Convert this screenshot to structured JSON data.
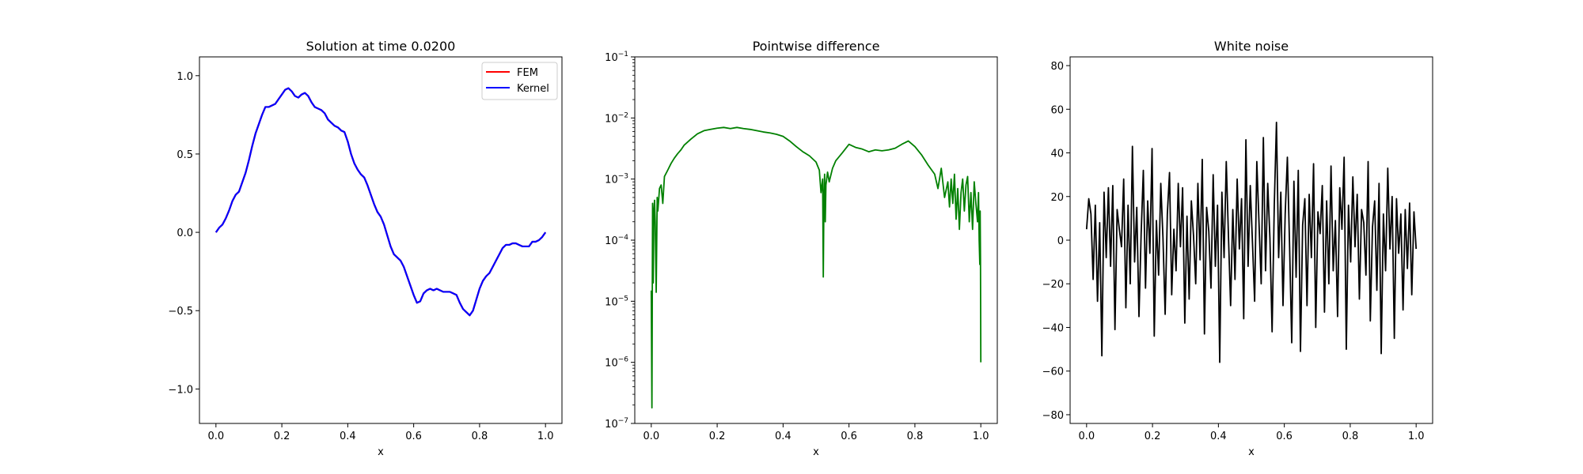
{
  "chart_data": [
    {
      "type": "line",
      "title": "Solution at time 0.0200",
      "xlabel": "x",
      "ylabel": "",
      "xlim": [
        -0.05,
        1.05
      ],
      "ylim": [
        -1.22,
        1.12
      ],
      "xticks": [
        0.0,
        0.2,
        0.4,
        0.6,
        0.8,
        1.0
      ],
      "xtick_labels": [
        "0.0",
        "0.2",
        "0.4",
        "0.6",
        "0.8",
        "1.0"
      ],
      "yticks": [
        -1.0,
        -0.5,
        0.0,
        0.5,
        1.0
      ],
      "ytick_labels": [
        "−1.0",
        "−0.5",
        "0.0",
        "0.5",
        "1.0"
      ],
      "legend": "top-right",
      "series": [
        {
          "name": "FEM",
          "color": "#ff0000",
          "x": [
            0,
            0.01,
            0.02,
            0.03,
            0.04,
            0.05,
            0.06,
            0.07,
            0.08,
            0.09,
            0.1,
            0.11,
            0.12,
            0.13,
            0.14,
            0.15,
            0.16,
            0.17,
            0.18,
            0.19,
            0.2,
            0.21,
            0.22,
            0.23,
            0.24,
            0.25,
            0.26,
            0.27,
            0.28,
            0.29,
            0.3,
            0.31,
            0.32,
            0.33,
            0.34,
            0.35,
            0.36,
            0.37,
            0.38,
            0.39,
            0.4,
            0.41,
            0.42,
            0.43,
            0.44,
            0.45,
            0.46,
            0.47,
            0.48,
            0.49,
            0.5,
            0.51,
            0.52,
            0.53,
            0.54,
            0.55,
            0.56,
            0.57,
            0.58,
            0.59,
            0.6,
            0.61,
            0.62,
            0.63,
            0.64,
            0.65,
            0.66,
            0.67,
            0.68,
            0.69,
            0.7,
            0.71,
            0.72,
            0.73,
            0.74,
            0.75,
            0.76,
            0.77,
            0.78,
            0.79,
            0.8,
            0.81,
            0.82,
            0.83,
            0.84,
            0.85,
            0.86,
            0.87,
            0.88,
            0.89,
            0.9,
            0.91,
            0.92,
            0.93,
            0.94,
            0.95,
            0.96,
            0.97,
            0.98,
            0.99,
            1.0
          ],
          "y": [
            0.0,
            0.03,
            0.05,
            0.09,
            0.14,
            0.2,
            0.24,
            0.26,
            0.32,
            0.38,
            0.46,
            0.55,
            0.63,
            0.69,
            0.75,
            0.8,
            0.8,
            0.81,
            0.82,
            0.85,
            0.88,
            0.91,
            0.92,
            0.9,
            0.87,
            0.86,
            0.88,
            0.89,
            0.87,
            0.83,
            0.8,
            0.79,
            0.78,
            0.76,
            0.72,
            0.7,
            0.68,
            0.67,
            0.65,
            0.64,
            0.58,
            0.5,
            0.44,
            0.4,
            0.37,
            0.35,
            0.3,
            0.24,
            0.18,
            0.13,
            0.1,
            0.05,
            -0.02,
            -0.09,
            -0.14,
            -0.16,
            -0.18,
            -0.22,
            -0.28,
            -0.34,
            -0.4,
            -0.45,
            -0.44,
            -0.39,
            -0.37,
            -0.36,
            -0.37,
            -0.36,
            -0.37,
            -0.38,
            -0.38,
            -0.38,
            -0.39,
            -0.4,
            -0.45,
            -0.49,
            -0.51,
            -0.53,
            -0.5,
            -0.43,
            -0.36,
            -0.31,
            -0.28,
            -0.26,
            -0.22,
            -0.18,
            -0.14,
            -0.1,
            -0.08,
            -0.08,
            -0.07,
            -0.07,
            -0.08,
            -0.09,
            -0.09,
            -0.09,
            -0.06,
            -0.06,
            -0.05,
            -0.03,
            0.0
          ]
        },
        {
          "name": "Kernel",
          "color": "#0000ff",
          "x": [
            0,
            0.01,
            0.02,
            0.03,
            0.04,
            0.05,
            0.06,
            0.07,
            0.08,
            0.09,
            0.1,
            0.11,
            0.12,
            0.13,
            0.14,
            0.15,
            0.16,
            0.17,
            0.18,
            0.19,
            0.2,
            0.21,
            0.22,
            0.23,
            0.24,
            0.25,
            0.26,
            0.27,
            0.28,
            0.29,
            0.3,
            0.31,
            0.32,
            0.33,
            0.34,
            0.35,
            0.36,
            0.37,
            0.38,
            0.39,
            0.4,
            0.41,
            0.42,
            0.43,
            0.44,
            0.45,
            0.46,
            0.47,
            0.48,
            0.49,
            0.5,
            0.51,
            0.52,
            0.53,
            0.54,
            0.55,
            0.56,
            0.57,
            0.58,
            0.59,
            0.6,
            0.61,
            0.62,
            0.63,
            0.64,
            0.65,
            0.66,
            0.67,
            0.68,
            0.69,
            0.7,
            0.71,
            0.72,
            0.73,
            0.74,
            0.75,
            0.76,
            0.77,
            0.78,
            0.79,
            0.8,
            0.81,
            0.82,
            0.83,
            0.84,
            0.85,
            0.86,
            0.87,
            0.88,
            0.89,
            0.9,
            0.91,
            0.92,
            0.93,
            0.94,
            0.95,
            0.96,
            0.97,
            0.98,
            0.99,
            1.0
          ],
          "y": [
            0.0,
            0.03,
            0.05,
            0.09,
            0.14,
            0.2,
            0.24,
            0.26,
            0.32,
            0.38,
            0.46,
            0.55,
            0.63,
            0.69,
            0.75,
            0.8,
            0.8,
            0.81,
            0.82,
            0.85,
            0.88,
            0.91,
            0.92,
            0.9,
            0.87,
            0.86,
            0.88,
            0.89,
            0.87,
            0.83,
            0.8,
            0.79,
            0.78,
            0.76,
            0.72,
            0.7,
            0.68,
            0.67,
            0.65,
            0.64,
            0.58,
            0.5,
            0.44,
            0.4,
            0.37,
            0.35,
            0.3,
            0.24,
            0.18,
            0.13,
            0.1,
            0.05,
            -0.02,
            -0.09,
            -0.14,
            -0.16,
            -0.18,
            -0.22,
            -0.28,
            -0.34,
            -0.4,
            -0.45,
            -0.44,
            -0.39,
            -0.37,
            -0.36,
            -0.37,
            -0.36,
            -0.37,
            -0.38,
            -0.38,
            -0.38,
            -0.39,
            -0.4,
            -0.45,
            -0.49,
            -0.51,
            -0.53,
            -0.5,
            -0.43,
            -0.36,
            -0.31,
            -0.28,
            -0.26,
            -0.22,
            -0.18,
            -0.14,
            -0.1,
            -0.08,
            -0.08,
            -0.07,
            -0.07,
            -0.08,
            -0.09,
            -0.09,
            -0.09,
            -0.06,
            -0.06,
            -0.05,
            -0.03,
            0.0
          ]
        }
      ]
    },
    {
      "type": "line",
      "title": "Pointwise difference",
      "xlabel": "x",
      "ylabel": "",
      "yscale": "log",
      "xlim": [
        -0.05,
        1.05
      ],
      "ylim": [
        1e-07,
        0.1
      ],
      "xticks": [
        0.0,
        0.2,
        0.4,
        0.6,
        0.8,
        1.0
      ],
      "xtick_labels": [
        "0.0",
        "0.2",
        "0.4",
        "0.6",
        "0.8",
        "1.0"
      ],
      "yticks": [
        1e-07,
        1e-06,
        1e-05,
        0.0001,
        0.001,
        0.01,
        0.1
      ],
      "ytick_exponents": [
        "−7",
        "−6",
        "−5",
        "−4",
        "−3",
        "−2",
        "−1"
      ],
      "series": [
        {
          "color": "#008000",
          "x": [
            0.0,
            0.002,
            0.004,
            0.006,
            0.008,
            0.01,
            0.012,
            0.015,
            0.018,
            0.02,
            0.025,
            0.03,
            0.035,
            0.04,
            0.05,
            0.06,
            0.07,
            0.08,
            0.09,
            0.1,
            0.12,
            0.14,
            0.16,
            0.18,
            0.2,
            0.22,
            0.24,
            0.26,
            0.28,
            0.3,
            0.32,
            0.34,
            0.36,
            0.38,
            0.4,
            0.42,
            0.44,
            0.46,
            0.48,
            0.5,
            0.51,
            0.515,
            0.52,
            0.522,
            0.524,
            0.526,
            0.528,
            0.53,
            0.535,
            0.54,
            0.55,
            0.56,
            0.58,
            0.6,
            0.62,
            0.64,
            0.66,
            0.68,
            0.7,
            0.72,
            0.74,
            0.76,
            0.78,
            0.8,
            0.82,
            0.84,
            0.86,
            0.87,
            0.88,
            0.89,
            0.9,
            0.905,
            0.91,
            0.915,
            0.92,
            0.925,
            0.93,
            0.935,
            0.94,
            0.945,
            0.95,
            0.955,
            0.96,
            0.965,
            0.97,
            0.975,
            0.98,
            0.985,
            0.99,
            0.993,
            0.995,
            0.997,
            0.998,
            0.999,
            1.0
          ],
          "y": [
            1.5e-05,
            1.8e-07,
            0.0004,
            2e-05,
            0.0003,
            0.00045,
            0.0002,
            1.4e-05,
            0.0005,
            0.0003,
            0.0007,
            0.0008,
            0.0004,
            0.0011,
            0.0014,
            0.0018,
            0.0022,
            0.0026,
            0.003,
            0.0036,
            0.0045,
            0.0055,
            0.0062,
            0.0065,
            0.0068,
            0.007,
            0.0067,
            0.007,
            0.0067,
            0.0065,
            0.0062,
            0.0059,
            0.0057,
            0.0054,
            0.005,
            0.0042,
            0.0034,
            0.0028,
            0.0024,
            0.0019,
            0.0014,
            0.0006,
            0.001,
            2.5e-05,
            0.0005,
            0.0012,
            0.0002,
            0.0008,
            0.0013,
            0.0009,
            0.0015,
            0.002,
            0.0027,
            0.0037,
            0.0033,
            0.0031,
            0.0028,
            0.003,
            0.0029,
            0.003,
            0.0032,
            0.0037,
            0.0042,
            0.0034,
            0.0025,
            0.0017,
            0.0012,
            0.0007,
            0.0015,
            0.0005,
            0.0009,
            0.00035,
            0.001,
            0.0004,
            0.0012,
            0.00022,
            0.0007,
            0.00015,
            0.0006,
            0.001,
            0.0003,
            0.0008,
            0.0011,
            0.0002,
            0.0006,
            0.00015,
            0.0009,
            0.0004,
            0.0002,
            0.0006,
            0.0001,
            4e-05,
            0.0003,
            5e-05,
            1e-06
          ]
        }
      ]
    },
    {
      "type": "line",
      "title": "White noise",
      "xlabel": "x",
      "ylabel": "",
      "xlim": [
        -0.05,
        1.05
      ],
      "ylim": [
        -84,
        84
      ],
      "xticks": [
        0.0,
        0.2,
        0.4,
        0.6,
        0.8,
        1.0
      ],
      "xtick_labels": [
        "0.0",
        "0.2",
        "0.4",
        "0.6",
        "0.8",
        "1.0"
      ],
      "yticks": [
        -80,
        -60,
        -40,
        -20,
        0,
        20,
        40,
        60,
        80
      ],
      "ytick_labels": [
        "−80",
        "−60",
        "−40",
        "−20",
        "0",
        "20",
        "40",
        "60",
        "80"
      ],
      "series": [
        {
          "color": "#000000",
          "x_range": [
            0,
            1
          ],
          "y": [
            5,
            19,
            12,
            -18,
            16,
            -28,
            8,
            -53,
            22,
            -8,
            24,
            -12,
            25,
            -41,
            14,
            5,
            -3,
            28,
            -31,
            16,
            -20,
            43,
            -10,
            15,
            -35,
            3,
            32,
            -22,
            18,
            -6,
            42,
            -44,
            9,
            -16,
            26,
            1,
            -34,
            12,
            31,
            -25,
            5,
            -14,
            26,
            -3,
            24,
            -38,
            11,
            -27,
            18,
            2,
            -20,
            26,
            -9,
            37,
            -43,
            15,
            4,
            -22,
            30,
            -12,
            16,
            -56,
            22,
            -8,
            36,
            2,
            -30,
            14,
            -18,
            28,
            -4,
            19,
            -36,
            46,
            -12,
            25,
            -1,
            -28,
            36,
            8,
            -20,
            47,
            -14,
            26,
            1,
            -42,
            16,
            54,
            -8,
            22,
            -30,
            12,
            38,
            -2,
            -47,
            27,
            -17,
            32,
            -51,
            7,
            19,
            -30,
            21,
            -8,
            35,
            -40,
            13,
            3,
            25,
            -33,
            18,
            -20,
            34,
            -14,
            9,
            -35,
            24,
            5,
            38,
            -50,
            16,
            -10,
            29,
            -3,
            21,
            -27,
            14,
            8,
            -16,
            36,
            -37,
            6,
            18,
            -23,
            26,
            -52,
            12,
            -14,
            33,
            -4,
            20,
            -45,
            19,
            -6,
            12,
            -32,
            14,
            -13,
            17,
            -25,
            13,
            -4
          ]
        }
      ]
    }
  ]
}
